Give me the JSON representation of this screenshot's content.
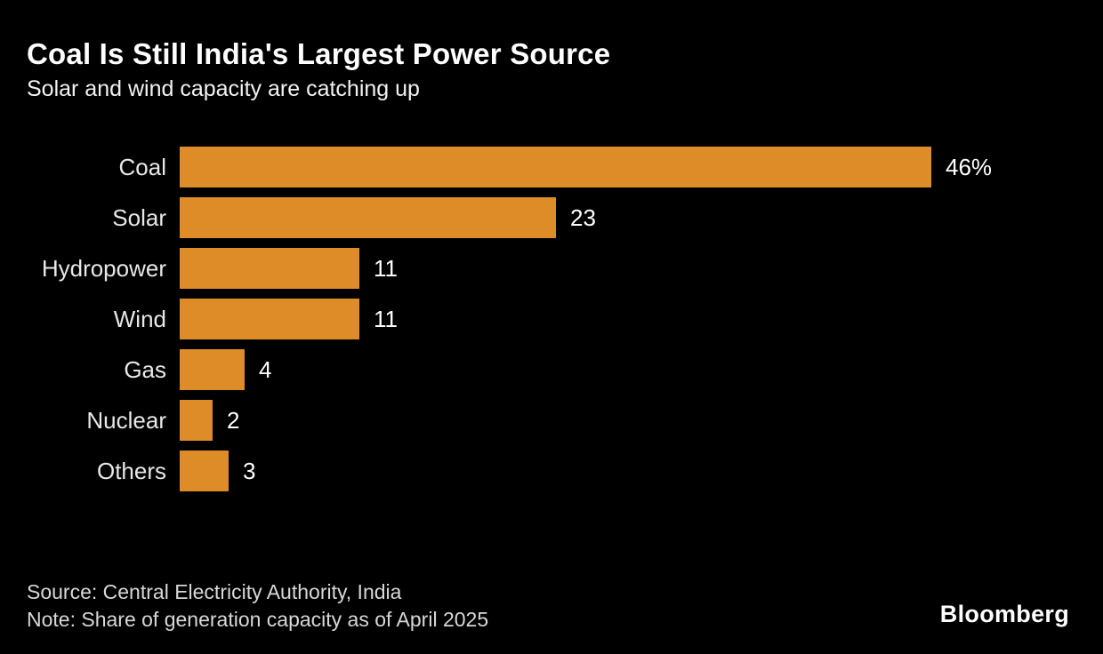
{
  "chart": {
    "title": "Coal Is Still India's Largest Power Source",
    "subtitle": "Solar and wind capacity are catching up",
    "source": "Source: Central Electricity Authority, India",
    "note": "Note: Share of generation capacity as of April 2025",
    "brand": "Bloomberg"
  },
  "chart_data": {
    "type": "bar",
    "orientation": "horizontal",
    "title": "Coal Is Still India's Largest Power Source",
    "subtitle": "Solar and wind capacity are catching up",
    "categories": [
      "Coal",
      "Solar",
      "Hydropower",
      "Wind",
      "Gas",
      "Nuclear",
      "Others"
    ],
    "values": [
      46,
      23,
      11,
      11,
      4,
      2,
      3
    ],
    "value_labels": [
      "46%",
      "23",
      "11",
      "11",
      "4",
      "2",
      "3"
    ],
    "unit": "percent share of generation capacity",
    "xlim": [
      0,
      46
    ],
    "grid": false,
    "legend": false,
    "bar_color": "#DE8C28",
    "background_color": "#000000",
    "text_color": "#FFFFFF"
  }
}
